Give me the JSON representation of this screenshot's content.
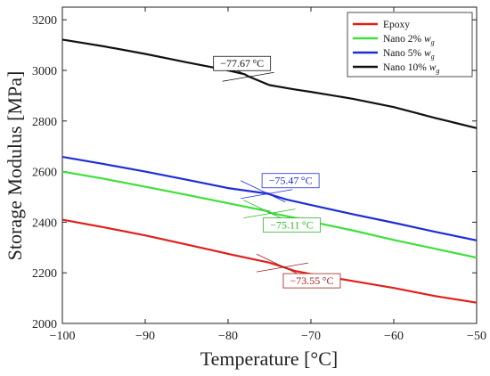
{
  "chart_data": {
    "type": "line",
    "xlabel": "Temperature [°C]",
    "ylabel": "Storage Modulus [MPa]",
    "xlim": [
      -100,
      -50
    ],
    "ylim": [
      2000,
      3250
    ],
    "xticks": [
      -100,
      -90,
      -80,
      -70,
      -60,
      -50
    ],
    "yticks": [
      2000,
      2200,
      2400,
      2600,
      2800,
      3000,
      3200
    ],
    "xtick_labels": [
      "−100",
      "−90",
      "−80",
      "−70",
      "−60",
      "−50"
    ],
    "ytick_labels": [
      "2000",
      "2200",
      "2400",
      "2600",
      "2800",
      "3000",
      "3200"
    ],
    "grid": false,
    "legend_position": "top-right",
    "series": [
      {
        "name": "Epoxy",
        "color": "#e0201b",
        "x": [
          -100,
          -95,
          -90,
          -85,
          -80,
          -75,
          -73.55,
          -72,
          -70,
          -65,
          -60,
          -55,
          -50
        ],
        "y": [
          2410,
          2380,
          2348,
          2312,
          2275,
          2240,
          2225,
          2208,
          2195,
          2168,
          2140,
          2108,
          2082
        ]
      },
      {
        "name": "Nano 2% w_g",
        "color": "#3fe03a",
        "x": [
          -100,
          -95,
          -90,
          -85,
          -80,
          -75,
          -75.11,
          -72,
          -70,
          -65,
          -60,
          -55,
          -50
        ],
        "y": [
          2600,
          2572,
          2540,
          2508,
          2475,
          2442,
          2438,
          2418,
          2402,
          2368,
          2330,
          2295,
          2260
        ]
      },
      {
        "name": "Nano 5% w_g",
        "color": "#1e2ed6",
        "x": [
          -100,
          -95,
          -90,
          -85,
          -80,
          -75,
          -75.47,
          -73,
          -70,
          -65,
          -60,
          -55,
          -50
        ],
        "y": [
          2658,
          2630,
          2600,
          2568,
          2535,
          2512,
          2515,
          2490,
          2468,
          2432,
          2398,
          2362,
          2328
        ]
      },
      {
        "name": "Nano 10% w_g",
        "color": "#111111",
        "x": [
          -100,
          -95,
          -90,
          -85,
          -80,
          -78,
          -77.67,
          -76.5,
          -75,
          -72,
          -70,
          -65,
          -60,
          -55,
          -50
        ],
        "y": [
          3122,
          3095,
          3065,
          3032,
          3000,
          2985,
          2978,
          2962,
          2942,
          2925,
          2915,
          2888,
          2855,
          2812,
          2772
        ]
      }
    ],
    "annotations": [
      {
        "text": "−77.67 °C",
        "color": "#111111",
        "x": -77.67,
        "y": 2978
      },
      {
        "text": "−75.47 °C",
        "color": "#1e2ed6",
        "x": -75.47,
        "y": 2515
      },
      {
        "text": "−75.11 °C",
        "color": "#2fb82a",
        "x": -75.11,
        "y": 2438
      },
      {
        "text": "−73.55 °C",
        "color": "#a0201b",
        "x": -73.55,
        "y": 2225
      }
    ]
  }
}
